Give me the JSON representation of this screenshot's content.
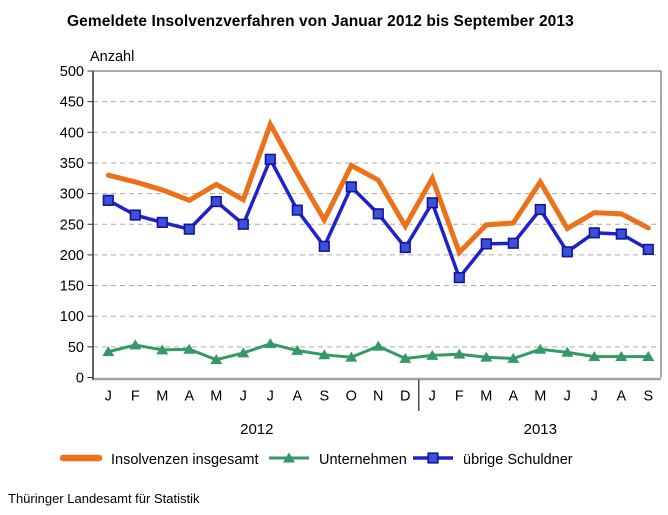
{
  "title": "Gemeldete Insolvenzverfahren von Januar 2012 bis September 2013",
  "source": "Thüringer Landesamt für Statistik",
  "legend": {
    "position": "bottom",
    "items": [
      {
        "label": "Insolvenzen insgesamt"
      },
      {
        "label": "Unternehmen"
      },
      {
        "label": "übrige Schuldner"
      }
    ]
  },
  "colors": {
    "total_line": "#ED7118",
    "companies_line": "#339966",
    "other_debtors_line": "#2121CC",
    "other_debtors_marker_fill": "#3A52D9",
    "other_debtors_marker_border": "#14149B",
    "gridline": "#ABABAB",
    "axis": "#333333",
    "baseline": "#A3A3A3"
  },
  "chart_data": {
    "type": "line",
    "title": "Gemeldete Insolvenzverfahren von Januar 2012 bis September 2013",
    "xlabel": "",
    "ylabel": "Anzahl",
    "ylim": [
      0,
      500
    ],
    "ytick_step": 50,
    "y_ticks": [
      0,
      50,
      100,
      150,
      200,
      250,
      300,
      350,
      400,
      450,
      500
    ],
    "grid": "dashed-horizontal",
    "legend_position": "bottom",
    "month_letters": [
      "J",
      "F",
      "M",
      "A",
      "M",
      "J",
      "J",
      "A",
      "S",
      "O",
      "N",
      "D",
      "J",
      "F",
      "M",
      "A",
      "M",
      "J",
      "J",
      "A",
      "S"
    ],
    "year_groups": [
      {
        "label": "2012",
        "start_index": 0,
        "end_index": 11
      },
      {
        "label": "2013",
        "start_index": 12,
        "end_index": 20
      }
    ],
    "x_separator_after_index": 11,
    "series": [
      {
        "name": "Insolvenzen insgesamt",
        "color": "#ED7118",
        "line_width": 5,
        "marker": "none",
        "values": [
          330,
          319,
          306,
          289,
          315,
          290,
          413,
          333,
          257,
          346,
          322,
          247,
          325,
          204,
          249,
          252,
          319,
          243,
          269,
          267,
          244
        ]
      },
      {
        "name": "Unternehmen",
        "color": "#339966",
        "line_width": 3,
        "marker": "triangle",
        "marker_fill": "#339966",
        "marker_stroke": "#2E8A5C",
        "values": [
          42,
          53,
          45,
          46,
          29,
          40,
          55,
          44,
          37,
          33,
          51,
          31,
          36,
          38,
          33,
          31,
          46,
          41,
          34,
          34,
          34
        ]
      },
      {
        "name": "übrige Schuldner",
        "color": "#2121CC",
        "line_width": 3.5,
        "marker": "square",
        "marker_fill": "#3A52D9",
        "marker_stroke": "#14149B",
        "values": [
          289,
          265,
          253,
          242,
          287,
          250,
          356,
          273,
          214,
          311,
          267,
          212,
          285,
          163,
          218,
          219,
          274,
          205,
          236,
          234,
          209
        ]
      }
    ]
  }
}
